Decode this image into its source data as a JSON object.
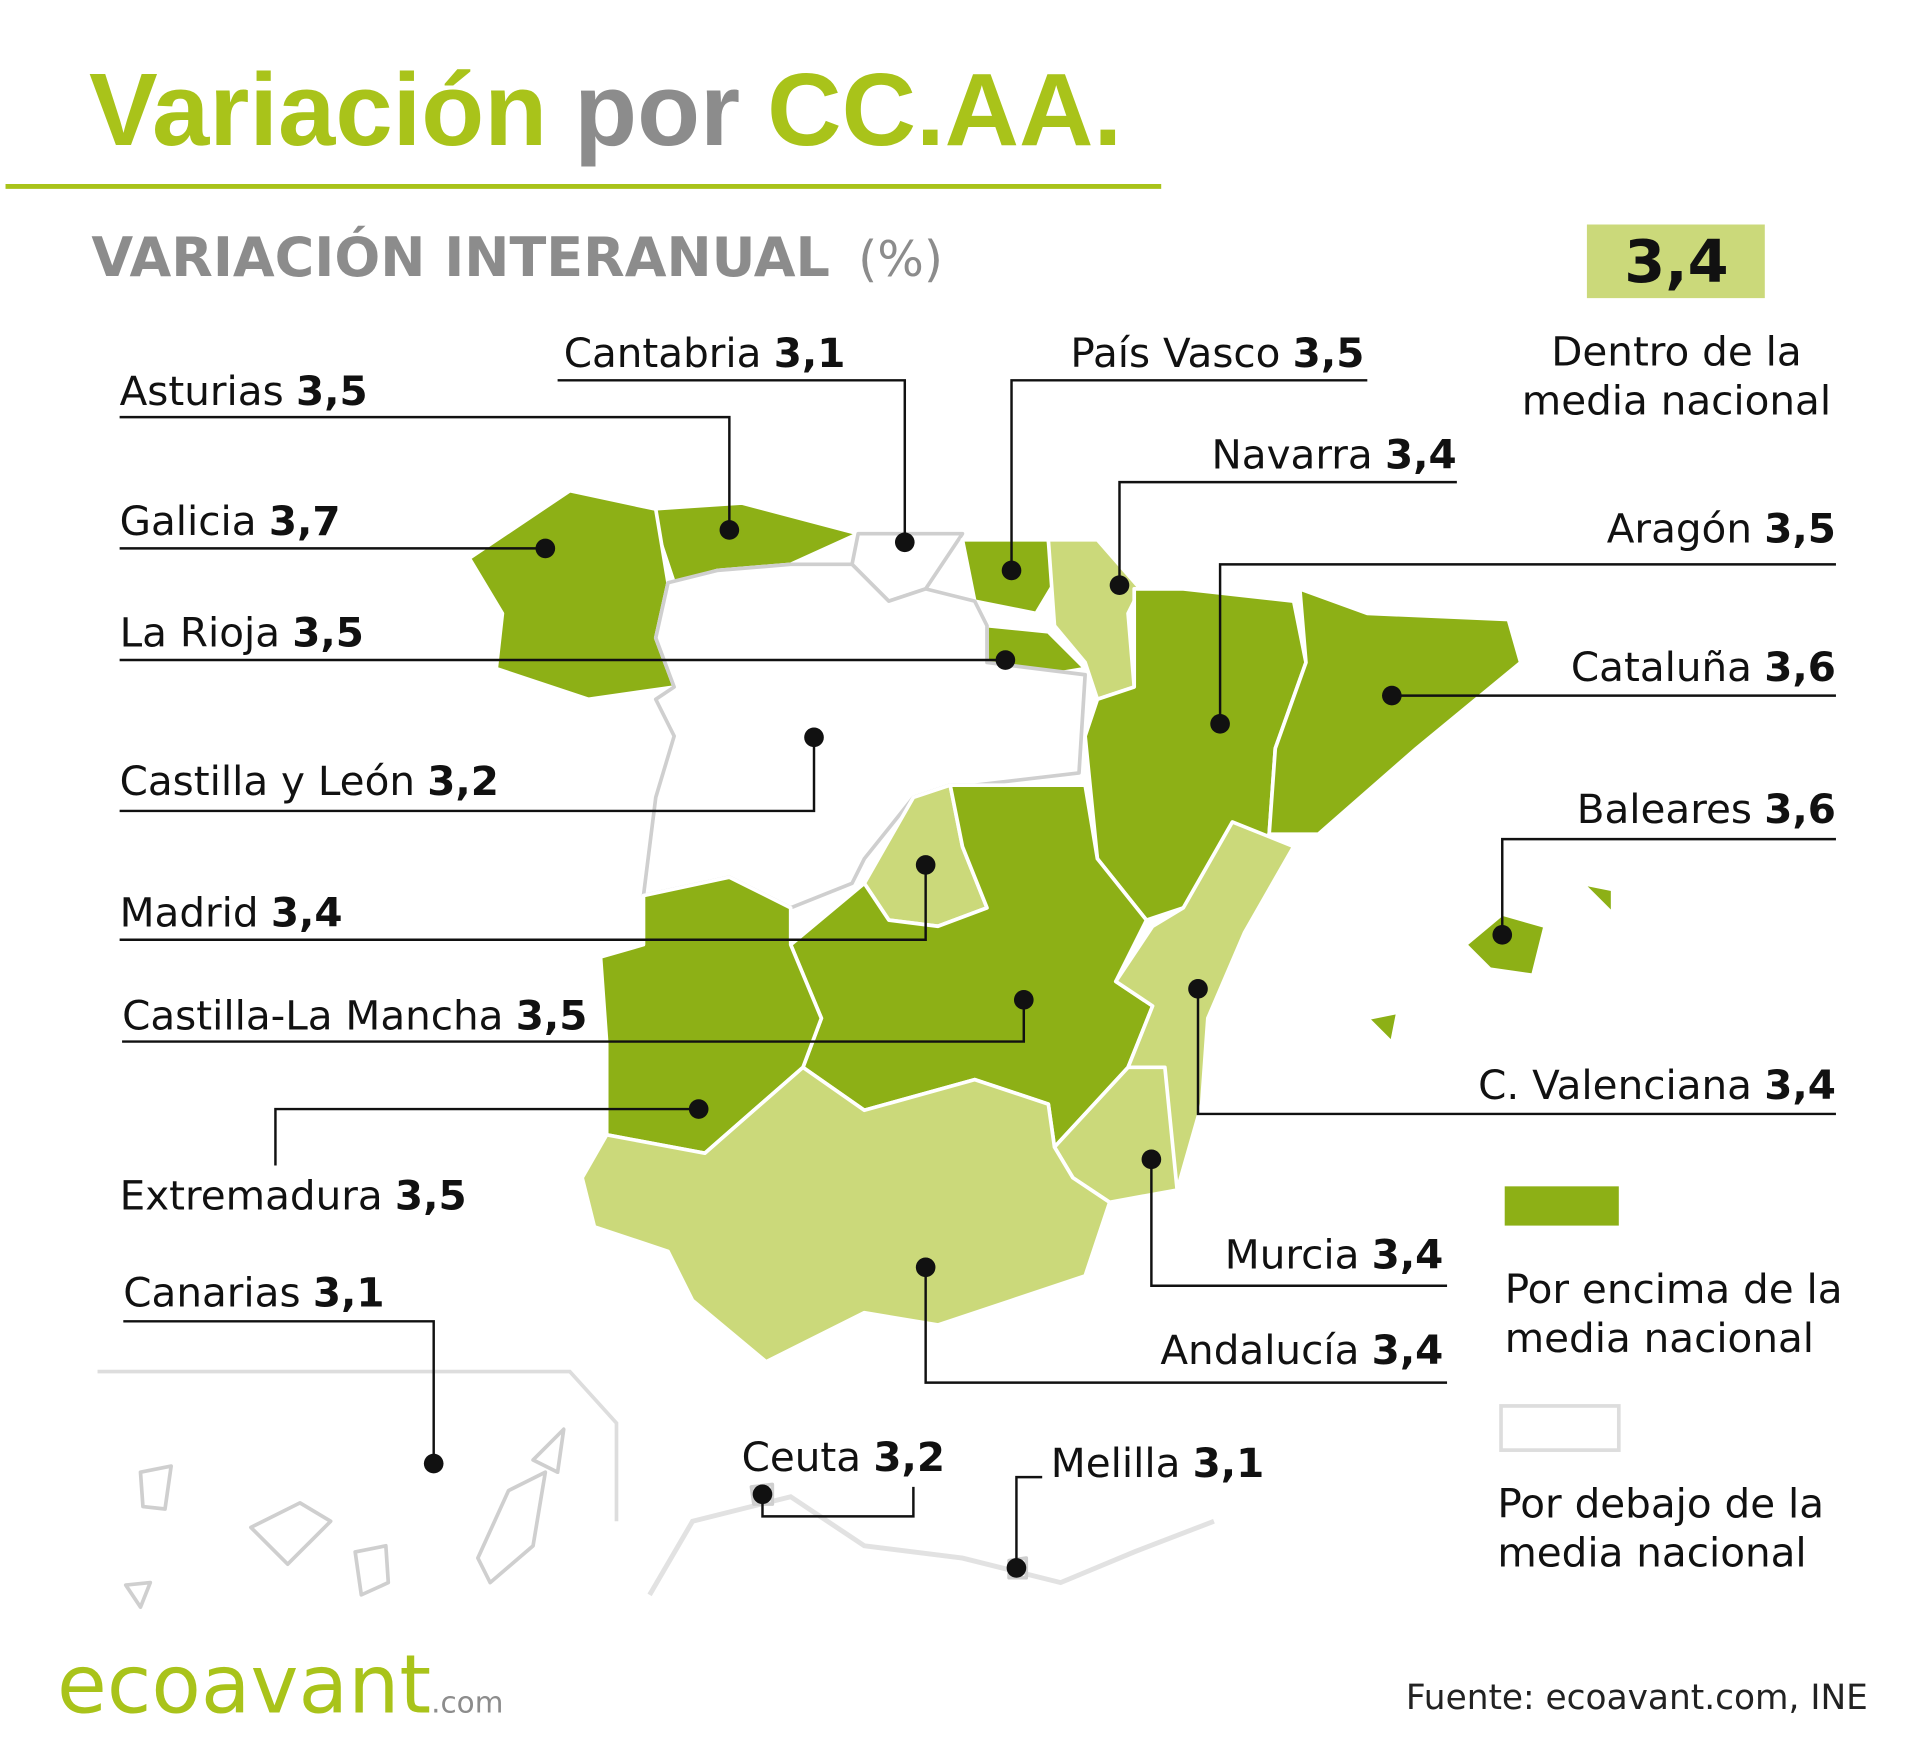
{
  "header": {
    "title_a": "Variación",
    "title_b": "por",
    "title_c": "CC.AA.",
    "subtitle": "VARIACIÓN INTERANUAL",
    "unit": "(%)"
  },
  "national": {
    "value": "3,4",
    "label": [
      "Dentro de la",
      "media nacional"
    ],
    "color": "#cbd97a"
  },
  "legend": [
    {
      "label": [
        "Por encima de la",
        "media nacional"
      ],
      "color": "#8db016"
    },
    {
      "label": [
        "Por debajo de la",
        "media nacional"
      ],
      "color": "#ffffff"
    }
  ],
  "regions": [
    {
      "name": "Asturias",
      "value": "3,5",
      "color": "#8db016"
    },
    {
      "name": "Cantabria",
      "value": "3,1",
      "color": "#ffffff"
    },
    {
      "name": "País Vasco",
      "value": "3,5",
      "color": "#8db016"
    },
    {
      "name": "Galicia",
      "value": "3,7",
      "color": "#8db016"
    },
    {
      "name": "Navarra",
      "value": "3,4",
      "color": "#cbd97a"
    },
    {
      "name": "Aragón",
      "value": "3,5",
      "color": "#8db016"
    },
    {
      "name": "La Rioja",
      "value": "3,5",
      "color": "#8db016"
    },
    {
      "name": "Cataluña",
      "value": "3,6",
      "color": "#8db016"
    },
    {
      "name": "Castilla y León",
      "value": "3,2",
      "color": "#ffffff"
    },
    {
      "name": "Baleares",
      "value": "3,6",
      "color": "#8db016"
    },
    {
      "name": "Madrid",
      "value": "3,4",
      "color": "#cbd97a"
    },
    {
      "name": "Castilla-La Mancha",
      "value": "3,5",
      "color": "#8db016"
    },
    {
      "name": "C. Valenciana",
      "value": "3,4",
      "color": "#cbd97a"
    },
    {
      "name": "Extremadura",
      "value": "3,5",
      "color": "#8db016"
    },
    {
      "name": "Murcia",
      "value": "3,4",
      "color": "#cbd97a"
    },
    {
      "name": "Andalucía",
      "value": "3,4",
      "color": "#cbd97a"
    },
    {
      "name": "Canarias",
      "value": "3,1",
      "color": "#ffffff"
    },
    {
      "name": "Ceuta",
      "value": "3,2",
      "color": "#ffffff"
    },
    {
      "name": "Melilla",
      "value": "3,1",
      "color": "#ffffff"
    }
  ],
  "footer": {
    "logo": "ecoavant",
    "logo_suffix": ".com",
    "source": "Fuente: ecoavant.com, INE"
  }
}
